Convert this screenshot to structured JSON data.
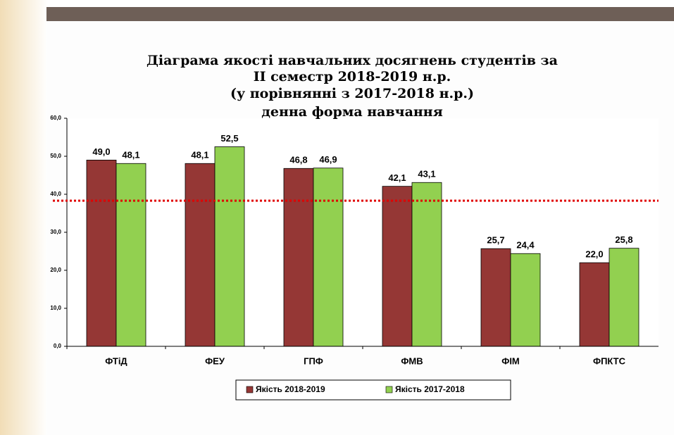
{
  "chart_data": {
    "type": "bar",
    "title": [
      "Діаграма якості навчальних досягнень студентів за",
      "ІІ семестр  2018-2019 н.р.",
      "(у порівнянні з 2017-2018 н.р.)",
      "денна форма навчання"
    ],
    "categories": [
      "ФТіД",
      "ФЕУ",
      "ГПФ",
      "ФМВ",
      "ФІМ",
      "ФПКТС"
    ],
    "series": [
      {
        "name": "Якість 2018-2019",
        "color": "#953735",
        "values": [
          49.0,
          48.1,
          46.8,
          42.1,
          25.7,
          22.0
        ],
        "value_labels": [
          "49,0",
          "48,1",
          "46,8",
          "42,1",
          "25,7",
          "22,0"
        ]
      },
      {
        "name": "Якість 2017-2018",
        "color": "#92d050",
        "values": [
          48.1,
          52.5,
          46.9,
          43.1,
          24.4,
          25.8
        ],
        "value_labels": [
          "48,1",
          "52,5",
          "46,9",
          "43,1",
          "24,4",
          "25,8"
        ]
      }
    ],
    "ylim": [
      0,
      60
    ],
    "yticks": [
      {
        "value": 0,
        "label": "0,0"
      },
      {
        "value": 10,
        "label": "10,0"
      },
      {
        "value": 20,
        "label": "20,0"
      },
      {
        "value": 30,
        "label": "30,0"
      },
      {
        "value": 40,
        "label": "40,0"
      },
      {
        "value": 50,
        "label": "50,0"
      },
      {
        "value": 60,
        "label": "60,0"
      }
    ],
    "reference_line": {
      "value": 38.3,
      "color": "#e00000"
    },
    "legend": "bottom"
  }
}
